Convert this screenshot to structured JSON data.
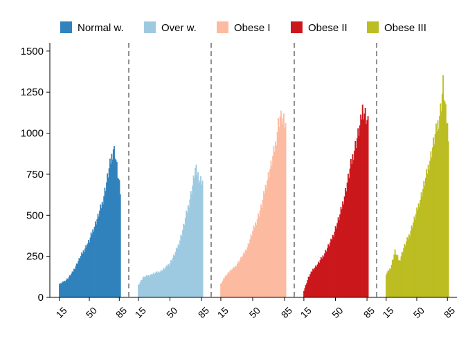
{
  "chart_data": {
    "type": "bar",
    "xlabel": "",
    "ylabel": "",
    "ylim": [
      0,
      1550
    ],
    "yticks": [
      0,
      250,
      500,
      750,
      1000,
      1250,
      1500
    ],
    "ytick_labels": [
      "0",
      "250",
      "500",
      "750",
      "1000",
      "1250",
      "1500"
    ],
    "xticks": [
      15,
      50,
      85
    ],
    "xtick_labels": [
      "15",
      "50",
      "85"
    ],
    "xlim": [
      12,
      88
    ],
    "legend_position": "top",
    "grid": false,
    "panel_separator": "dashed vertical lines",
    "series": [
      {
        "name": "Normal w.",
        "color": "#3182bd",
        "points": [
          [
            15,
            80
          ],
          [
            20,
            95
          ],
          [
            25,
            115
          ],
          [
            30,
            150
          ],
          [
            35,
            200
          ],
          [
            40,
            250
          ],
          [
            45,
            300
          ],
          [
            50,
            345
          ],
          [
            55,
            420
          ],
          [
            60,
            490
          ],
          [
            65,
            570
          ],
          [
            70,
            700
          ],
          [
            75,
            830
          ],
          [
            78,
            910
          ],
          [
            80,
            880
          ],
          [
            83,
            750
          ],
          [
            85,
            680
          ],
          [
            86,
            640
          ]
        ]
      },
      {
        "name": "Over w.",
        "color": "#9ecae1",
        "points": [
          [
            15,
            75
          ],
          [
            20,
            120
          ],
          [
            25,
            130
          ],
          [
            30,
            140
          ],
          [
            35,
            150
          ],
          [
            40,
            160
          ],
          [
            45,
            180
          ],
          [
            50,
            210
          ],
          [
            55,
            260
          ],
          [
            60,
            330
          ],
          [
            65,
            430
          ],
          [
            70,
            550
          ],
          [
            75,
            680
          ],
          [
            78,
            780
          ],
          [
            80,
            760
          ],
          [
            83,
            720
          ],
          [
            86,
            710
          ]
        ]
      },
      {
        "name": "Obese I",
        "color": "#fcbba1",
        "points": [
          [
            15,
            80
          ],
          [
            20,
            130
          ],
          [
            25,
            160
          ],
          [
            30,
            180
          ],
          [
            35,
            220
          ],
          [
            40,
            260
          ],
          [
            45,
            320
          ],
          [
            50,
            400
          ],
          [
            55,
            480
          ],
          [
            60,
            560
          ],
          [
            65,
            700
          ],
          [
            70,
            800
          ],
          [
            75,
            930
          ],
          [
            78,
            1060
          ],
          [
            80,
            1100
          ],
          [
            83,
            1080
          ],
          [
            86,
            1040
          ]
        ]
      },
      {
        "name": "Obese II",
        "color": "#cb181d",
        "points": [
          [
            15,
            40
          ],
          [
            20,
            120
          ],
          [
            25,
            170
          ],
          [
            30,
            200
          ],
          [
            35,
            240
          ],
          [
            40,
            290
          ],
          [
            45,
            340
          ],
          [
            50,
            420
          ],
          [
            55,
            500
          ],
          [
            60,
            620
          ],
          [
            65,
            750
          ],
          [
            70,
            880
          ],
          [
            75,
            990
          ],
          [
            78,
            1060
          ],
          [
            80,
            1150
          ],
          [
            83,
            1120
          ],
          [
            86,
            1060
          ]
        ]
      },
      {
        "name": "Obese III",
        "color": "#bcbd22",
        "points": [
          [
            15,
            140
          ],
          [
            20,
            180
          ],
          [
            25,
            280
          ],
          [
            30,
            220
          ],
          [
            35,
            300
          ],
          [
            40,
            360
          ],
          [
            45,
            440
          ],
          [
            50,
            520
          ],
          [
            55,
            620
          ],
          [
            60,
            720
          ],
          [
            65,
            840
          ],
          [
            70,
            960
          ],
          [
            75,
            1080
          ],
          [
            78,
            1180
          ],
          [
            80,
            1300
          ],
          [
            83,
            1120
          ],
          [
            86,
            1000
          ]
        ]
      }
    ]
  }
}
